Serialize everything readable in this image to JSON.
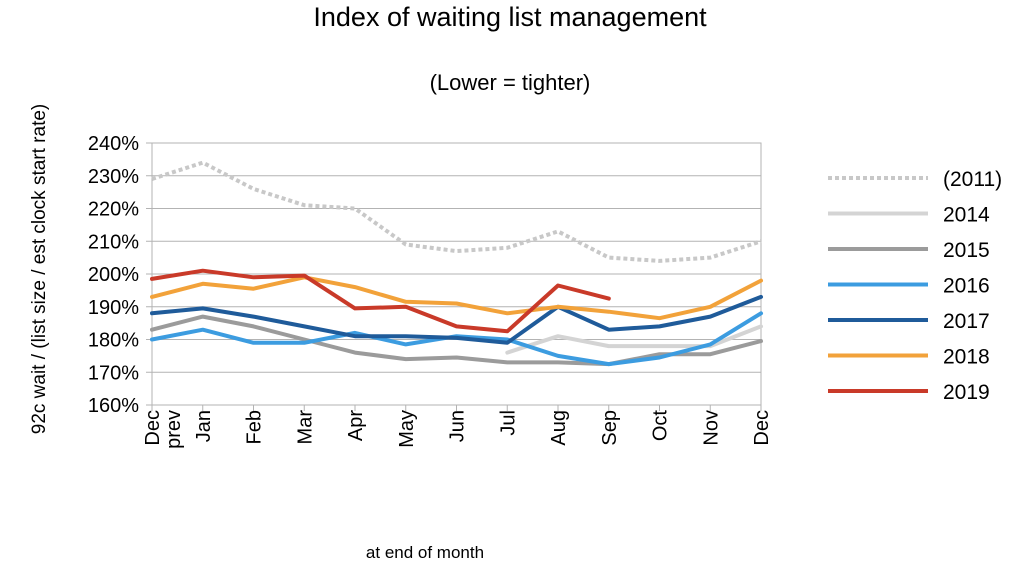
{
  "chart_data": {
    "type": "line",
    "title": "Index of waiting list management",
    "subtitle": "(Lower = tighter)",
    "xlabel": "at end of month",
    "ylabel": "92c wait / (list size / est clock start rate)",
    "categories": [
      "Dec prev",
      "Jan",
      "Feb",
      "Mar",
      "Apr",
      "May",
      "Jun",
      "Jul",
      "Aug",
      "Sep",
      "Oct",
      "Nov",
      "Dec"
    ],
    "ylim": [
      160,
      240
    ],
    "yticks": [
      "160%",
      "170%",
      "180%",
      "190%",
      "200%",
      "210%",
      "220%",
      "230%",
      "240%"
    ],
    "grid": "horizontal",
    "legend_position": "right",
    "series": [
      {
        "name": "(2011)",
        "color": "#c8c8c8",
        "dashed": true,
        "values": [
          229,
          234,
          226,
          221,
          220,
          209,
          207,
          208,
          213,
          205,
          204,
          205,
          210
        ]
      },
      {
        "name": "2014",
        "color": "#d4d4d4",
        "dashed": false,
        "values": [
          null,
          null,
          null,
          null,
          null,
          null,
          null,
          176,
          181,
          178,
          178,
          178,
          184
        ]
      },
      {
        "name": "2015",
        "color": "#9b9b9b",
        "dashed": false,
        "values": [
          183,
          187,
          184,
          180,
          176,
          174,
          174.5,
          173,
          173,
          172.5,
          175.5,
          175.5,
          179.5
        ]
      },
      {
        "name": "2016",
        "color": "#3c9ce0",
        "dashed": false,
        "values": [
          180,
          183,
          179,
          179,
          182,
          178.5,
          181,
          180,
          175,
          172.5,
          174.5,
          178.5,
          188
        ]
      },
      {
        "name": "2017",
        "color": "#1f5b9a",
        "dashed": false,
        "values": [
          188,
          189.5,
          187,
          184,
          181,
          181,
          180.5,
          179,
          190,
          183,
          184,
          187,
          193
        ]
      },
      {
        "name": "2018",
        "color": "#f2a23a",
        "dashed": false,
        "values": [
          193,
          197,
          195.5,
          199,
          196,
          191.5,
          191,
          188,
          190,
          188.5,
          186.5,
          190,
          198
        ]
      },
      {
        "name": "2019",
        "color": "#c93a29",
        "dashed": false,
        "values": [
          198.5,
          201,
          199,
          199.5,
          189.5,
          190,
          184,
          182.5,
          196.5,
          192.5,
          null,
          null,
          null
        ]
      }
    ]
  }
}
